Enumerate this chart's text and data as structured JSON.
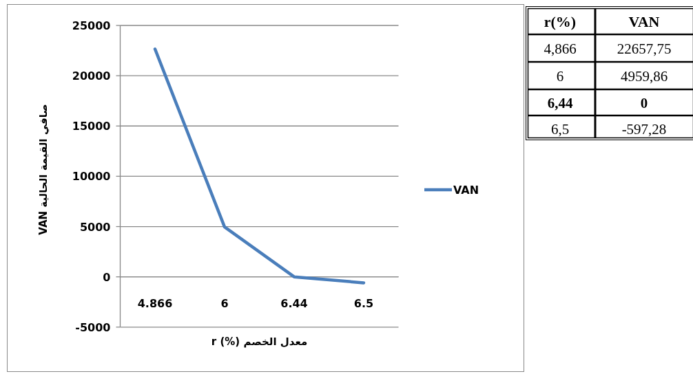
{
  "chart_data": {
    "type": "line",
    "xlabel": "معدل الخصم (%) r",
    "ylabel": "صافي القيمة الحالية  VAN",
    "categories": [
      "4.866",
      "6",
      "6.44",
      "6.5"
    ],
    "series": [
      {
        "name": "VAN",
        "color": "#4a7ebb",
        "values": [
          22657.75,
          4959.86,
          0,
          -597.28
        ]
      }
    ],
    "ylim": [
      -5000,
      25000
    ],
    "yticks": [
      -5000,
      0,
      5000,
      10000,
      15000,
      20000,
      25000
    ],
    "grid": "y",
    "legend": "right",
    "annotations": [
      "r(%)",
      "VAN",
      "4,866",
      "22657,75",
      "6",
      "4959,86",
      "**6,44**",
      "**0**",
      "6,5",
      "-597,28"
    ]
  }
}
